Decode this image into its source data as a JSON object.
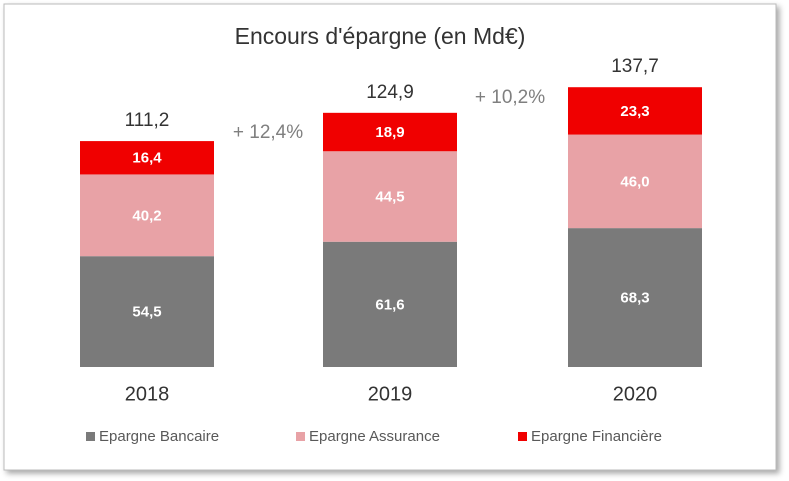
{
  "chart_data": {
    "type": "stacked-bar",
    "title": "Encours d'épargne (en Md€)",
    "categories": [
      "2018",
      "2019",
      "2020"
    ],
    "series": [
      {
        "name": "Epargne Bancaire",
        "color": "#7a7a7a",
        "values": [
          54.5,
          61.6,
          68.3
        ],
        "value_labels": [
          "54,5",
          "61,6",
          "68,3"
        ]
      },
      {
        "name": "Epargne Assurance",
        "color": "#e8a2a6",
        "values": [
          40.2,
          44.5,
          46.0
        ],
        "value_labels": [
          "40,2",
          "44,5",
          "46,0"
        ]
      },
      {
        "name": "Epargne Financière",
        "color": "#f00000",
        "values": [
          16.4,
          18.9,
          23.3
        ],
        "value_labels": [
          "16,4",
          "18,9",
          "23,3"
        ]
      }
    ],
    "totals": [
      111.2,
      124.9,
      137.7
    ],
    "total_labels": [
      "111,2",
      "124,9",
      "137,7"
    ],
    "annotations": [
      "+ 12,4%",
      "+ 10,2%"
    ],
    "legend": "bottom"
  }
}
